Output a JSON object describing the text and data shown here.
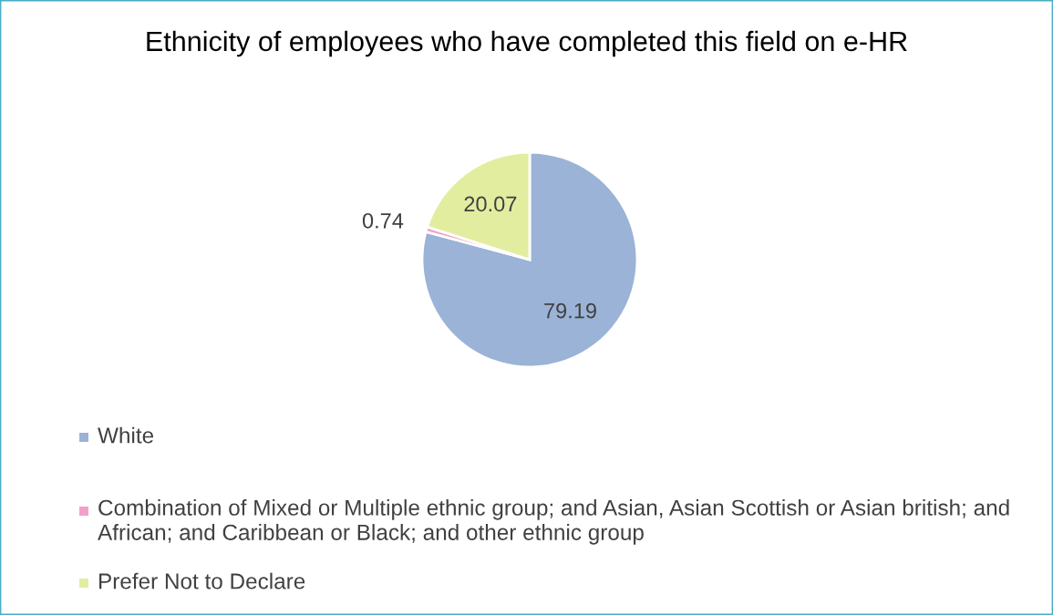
{
  "chart_data": {
    "type": "pie",
    "title": "Ethnicity of employees who have completed this field on e-HR",
    "categories": [
      "White",
      "Combination of Mixed or Multiple ethnic group; and Asian, Asian Scottish or Asian british; and African; and Caribbean or Black; and other ethnic group",
      "Prefer Not to Declare"
    ],
    "values": [
      79.19,
      0.74,
      20.07
    ],
    "colors": [
      "#9bb3d6",
      "#f2a0c8",
      "#e3eda0"
    ],
    "data_labels": true,
    "legend": "bottom"
  }
}
